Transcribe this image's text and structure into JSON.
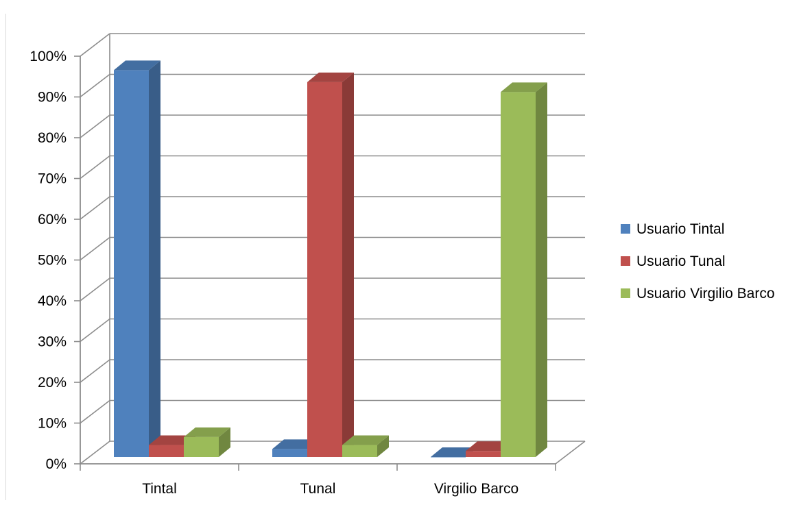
{
  "chart_data": {
    "type": "bar",
    "categories": [
      "Tintal",
      "Tunal",
      "Virgilio Barco"
    ],
    "series": [
      {
        "name": "Usuario Tintal",
        "values": [
          97,
          2,
          0
        ],
        "color": "#4f81bd"
      },
      {
        "name": "Usuario Tunal",
        "values": [
          3,
          94,
          1.5
        ],
        "color": "#c0504d"
      },
      {
        "name": "Usuario Virgilio Barco",
        "values": [
          5,
          3,
          91.5
        ],
        "color": "#9bbb59"
      }
    ],
    "yticks": [
      "0%",
      "10%",
      "20%",
      "30%",
      "40%",
      "50%",
      "60%",
      "70%",
      "80%",
      "90%",
      "100%"
    ],
    "ylim": [
      0,
      100
    ],
    "title": "",
    "xlabel": "",
    "ylabel": "",
    "grid": true,
    "style": "3d-clustered-column",
    "legend_position": "right"
  }
}
